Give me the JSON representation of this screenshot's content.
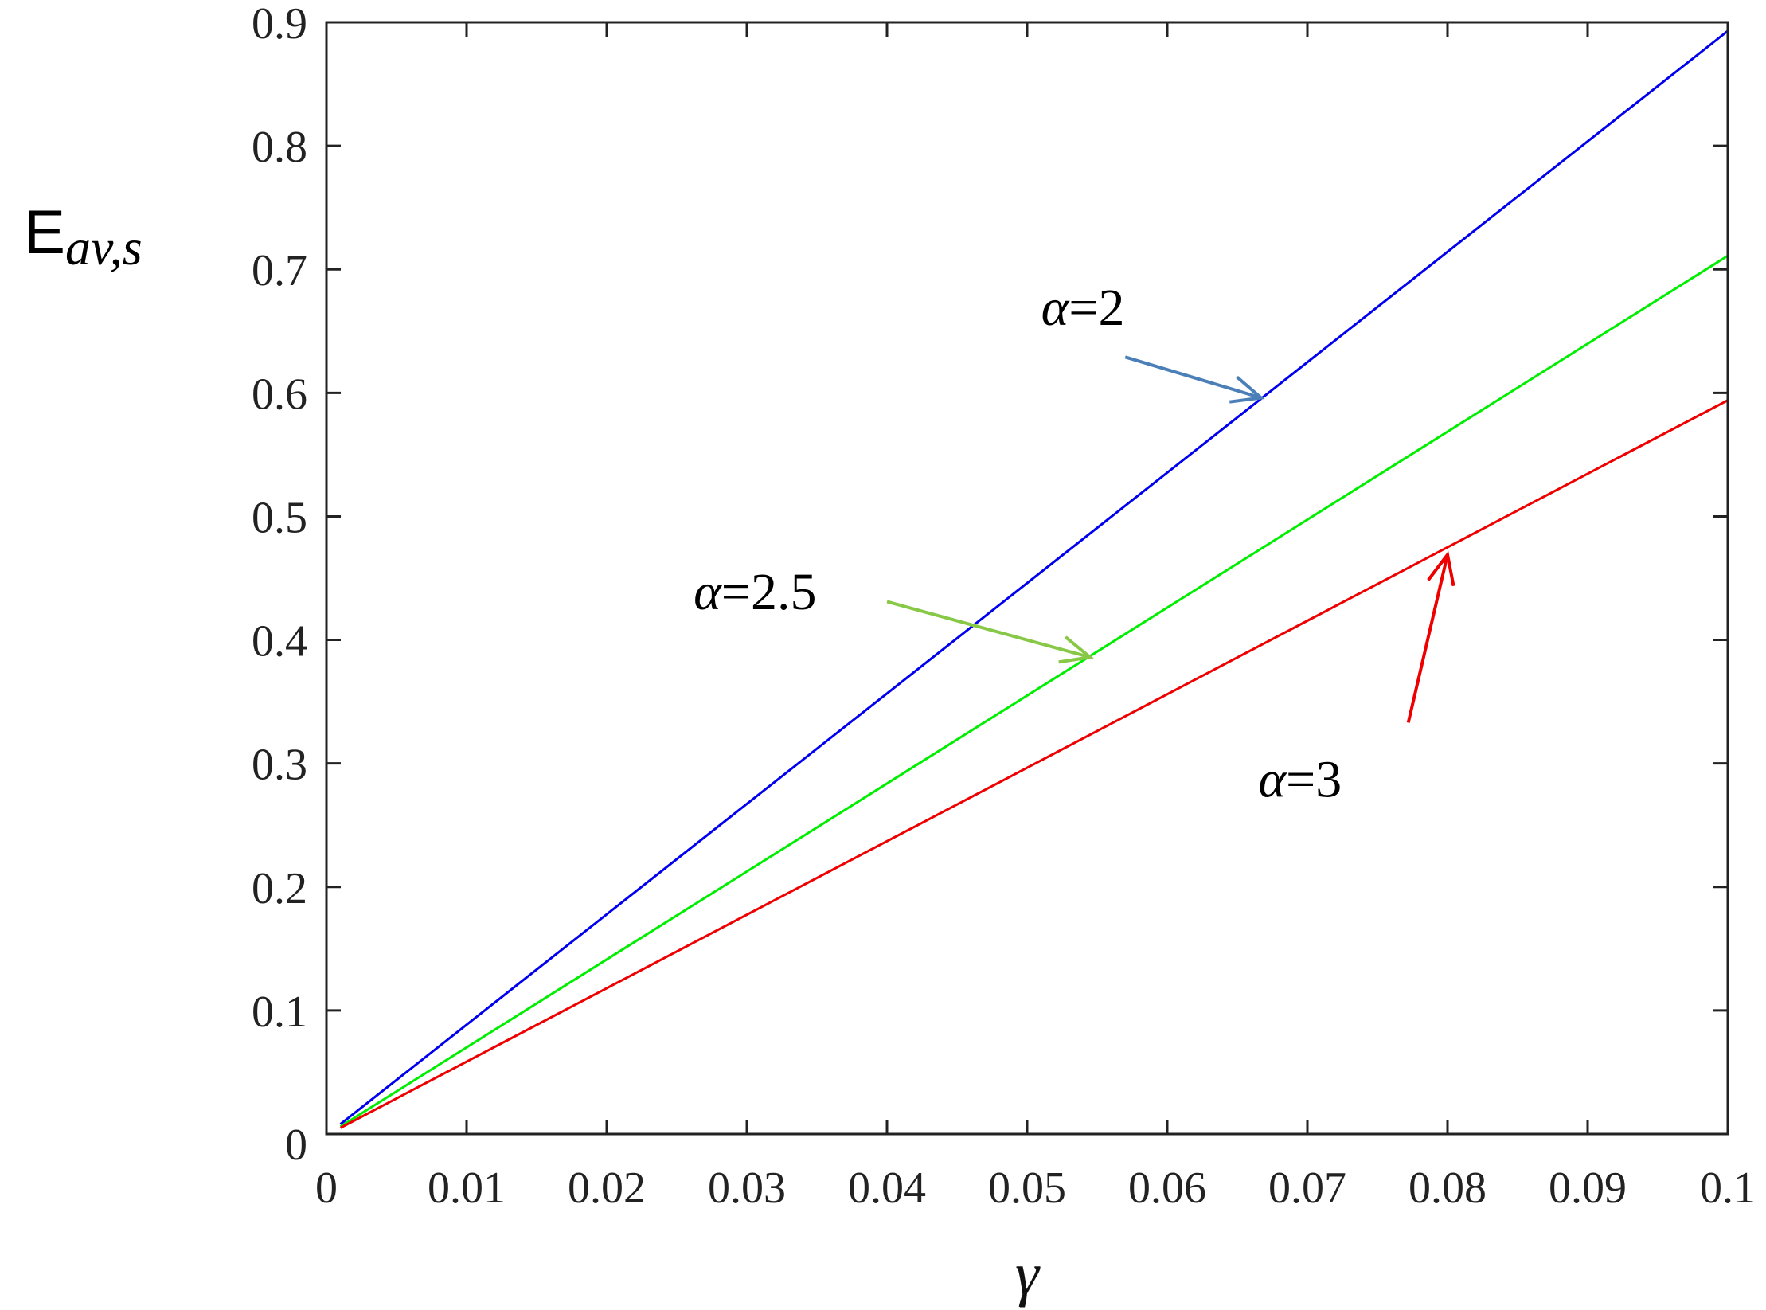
{
  "chart_data": {
    "type": "line",
    "title": "",
    "xlabel": "γ",
    "ylabel": {
      "main": "E",
      "sub": "av,s"
    },
    "xlim": [
      0,
      0.1
    ],
    "ylim": [
      0,
      0.9
    ],
    "xticks": [
      0,
      0.01,
      0.02,
      0.03,
      0.04,
      0.05,
      0.06,
      0.07,
      0.08,
      0.09,
      0.1
    ],
    "xtick_labels": [
      "0",
      "0.01",
      "0.02",
      "0.03",
      "0.04",
      "0.05",
      "0.06",
      "0.07",
      "0.08",
      "0.09",
      "0.1"
    ],
    "yticks": [
      0,
      0.1,
      0.2,
      0.3,
      0.4,
      0.5,
      0.6,
      0.7,
      0.8,
      0.9
    ],
    "ytick_labels": [
      "0",
      "0.1",
      "0.2",
      "0.3",
      "0.4",
      "0.5",
      "0.6",
      "0.7",
      "0.8",
      "0.9"
    ],
    "grid": false,
    "series": [
      {
        "color": "#0000ee",
        "x": [
          0.001,
          0.1
        ],
        "y": [
          0.008,
          0.893
        ]
      },
      {
        "color": "#00ee00",
        "x": [
          0.001,
          0.1
        ],
        "y": [
          0.006,
          0.711
        ]
      },
      {
        "color": "#ee0000",
        "x": [
          0.001,
          0.1
        ],
        "y": [
          0.005,
          0.594
        ]
      }
    ],
    "annotations": [
      {
        "symbol": "α",
        "value": "=2",
        "color": "#4a7fb8",
        "text_at": [
          0.051,
          0.655
        ],
        "arrow_from": [
          0.057,
          0.629
        ],
        "arrow_to": [
          0.0667,
          0.596
        ]
      },
      {
        "symbol": "α",
        "value": "=2.5",
        "color": "#88c847",
        "text_at": [
          0.0262,
          0.425
        ],
        "arrow_from": [
          0.04,
          0.431
        ],
        "arrow_to": [
          0.0545,
          0.386
        ]
      },
      {
        "symbol": "α",
        "value": "=3",
        "color": "#ee0000",
        "text_at": [
          0.0665,
          0.273
        ],
        "arrow_from": [
          0.0772,
          0.333
        ],
        "arrow_to": [
          0.08,
          0.469
        ]
      }
    ]
  }
}
